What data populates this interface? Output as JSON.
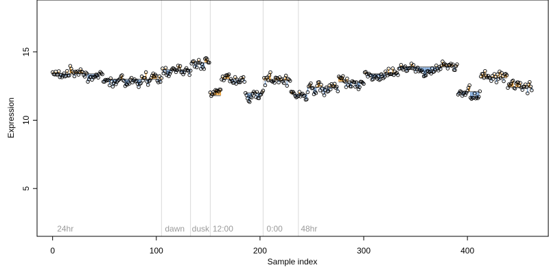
{
  "chart_data": {
    "type": "scatter",
    "title": "",
    "xlabel": "Sample index",
    "ylabel": "Expression",
    "xlim": [
      -15,
      478
    ],
    "ylim": [
      1.5,
      18.8
    ],
    "xticks": [
      0,
      100,
      200,
      300,
      400
    ],
    "yticks": [
      5,
      10,
      15
    ],
    "grid": false,
    "legend": "none",
    "phase_markers": [
      {
        "x": 105,
        "label": ""
      },
      {
        "x": 133,
        "label": ""
      },
      {
        "x": 152,
        "label": ""
      },
      {
        "x": 203,
        "label": ""
      },
      {
        "x": 237,
        "label": ""
      }
    ],
    "phase_labels": [
      {
        "x": 3,
        "label": "24hr"
      },
      {
        "x": 107,
        "label": "dawn"
      },
      {
        "x": 133,
        "label": "dusk"
      },
      {
        "x": 153,
        "label": "12:00"
      },
      {
        "x": 205,
        "label": "0:00"
      },
      {
        "x": 238,
        "label": "48hr"
      }
    ],
    "segments": [
      {
        "x": [
          0,
          48
        ],
        "level": 13.4
      },
      {
        "x": [
          49,
          105
        ],
        "level": 13.0
      },
      {
        "x": [
          106,
          133
        ],
        "level": 13.7
      },
      {
        "x": [
          134,
          151
        ],
        "level": 14.2
      },
      {
        "x": [
          152,
          162
        ],
        "level": 11.8
      },
      {
        "x": [
          163,
          185
        ],
        "level": 13.0
      },
      {
        "x": [
          186,
          203
        ],
        "level": 12.0
      },
      {
        "x": [
          204,
          229
        ],
        "level": 12.9
      },
      {
        "x": [
          230,
          245
        ],
        "level": 11.9
      },
      {
        "x": [
          246,
          275
        ],
        "level": 12.4
      },
      {
        "x": [
          276,
          300
        ],
        "level": 12.8
      },
      {
        "x": [
          301,
          333
        ],
        "level": 13.4
      },
      {
        "x": [
          334,
          390
        ],
        "level": 13.9
      },
      {
        "x": [
          391,
          412
        ],
        "level": 12.1
      },
      {
        "x": [
          413,
          438
        ],
        "level": 13.1
      },
      {
        "x": [
          439,
          462
        ],
        "level": 12.4
      }
    ],
    "colors": {
      "above": "#f0a030",
      "below": "#6f9fd8",
      "segment_line": "#8c8c8c",
      "points": "#000000",
      "phase_line": "#d9d9d9",
      "axes": "#000000"
    }
  }
}
